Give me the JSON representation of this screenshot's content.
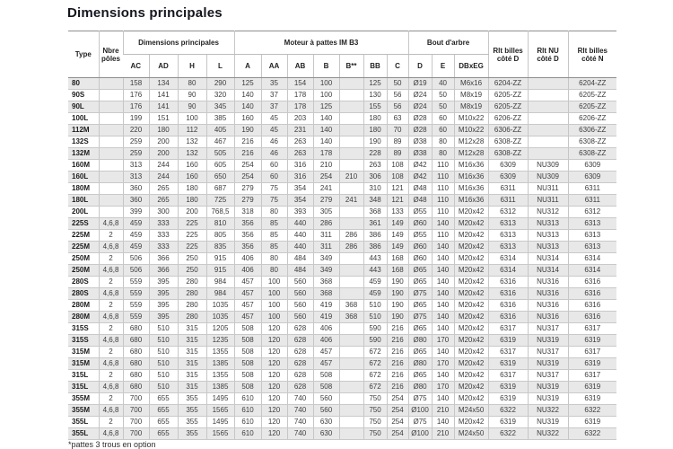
{
  "page": {
    "title": "Dimensions principales",
    "footnote": "*pattes 3 trous en option"
  },
  "colors": {
    "row_shaded": "#e8e8e8",
    "text": "#3c3c3c",
    "heading_text": "#15151f",
    "border": "#c6c6c6",
    "header_rule": "#8d8d8d"
  },
  "table": {
    "header": {
      "col_type": "Type",
      "col_poles": "Nbre pôles",
      "group_dimensions": "Dimensions principales",
      "group_moteur": "Moteur à pattes IM B3",
      "group_arbre": "Bout d'arbre",
      "sub_columns": [
        "AC",
        "AD",
        "H",
        "L",
        "A",
        "AA",
        "AB",
        "B",
        "B**",
        "BB",
        "C",
        "D",
        "E",
        "DBxEG"
      ],
      "col_rlt_billes_d": "Rlt billes côté D",
      "col_rlt_nu_d": "Rlt NU côté D",
      "col_rlt_billes_n": "Rlt billes côté N"
    },
    "rows": [
      [
        "80",
        "",
        "158",
        "134",
        "80",
        "290",
        "125",
        "35",
        "154",
        "100",
        "",
        "125",
        "50",
        "Ø19",
        "40",
        "M6x16",
        "6204-ZZ",
        "",
        "6204-ZZ"
      ],
      [
        "90S",
        "",
        "176",
        "141",
        "90",
        "320",
        "140",
        "37",
        "178",
        "100",
        "",
        "130",
        "56",
        "Ø24",
        "50",
        "M8x19",
        "6205-ZZ",
        "",
        "6205-ZZ"
      ],
      [
        "90L",
        "",
        "176",
        "141",
        "90",
        "345",
        "140",
        "37",
        "178",
        "125",
        "",
        "155",
        "56",
        "Ø24",
        "50",
        "M8x19",
        "6205-ZZ",
        "",
        "6205-ZZ"
      ],
      [
        "100L",
        "",
        "199",
        "151",
        "100",
        "385",
        "160",
        "45",
        "203",
        "140",
        "",
        "180",
        "63",
        "Ø28",
        "60",
        "M10x22",
        "6206-ZZ",
        "",
        "6206-ZZ"
      ],
      [
        "112M",
        "",
        "220",
        "180",
        "112",
        "405",
        "190",
        "45",
        "231",
        "140",
        "",
        "180",
        "70",
        "Ø28",
        "60",
        "M10x22",
        "6306-ZZ",
        "",
        "6306-ZZ"
      ],
      [
        "132S",
        "",
        "259",
        "200",
        "132",
        "467",
        "216",
        "46",
        "263",
        "140",
        "",
        "190",
        "89",
        "Ø38",
        "80",
        "M12x28",
        "6308-ZZ",
        "",
        "6308-ZZ"
      ],
      [
        "132M",
        "",
        "259",
        "200",
        "132",
        "505",
        "216",
        "46",
        "263",
        "178",
        "",
        "228",
        "89",
        "Ø38",
        "80",
        "M12x28",
        "6308-ZZ",
        "",
        "6308-ZZ"
      ],
      [
        "160M",
        "",
        "313",
        "244",
        "160",
        "605",
        "254",
        "60",
        "316",
        "210",
        "",
        "263",
        "108",
        "Ø42",
        "110",
        "M16x36",
        "6309",
        "NU309",
        "6309"
      ],
      [
        "160L",
        "",
        "313",
        "244",
        "160",
        "650",
        "254",
        "60",
        "316",
        "254",
        "210",
        "306",
        "108",
        "Ø42",
        "110",
        "M16x36",
        "6309",
        "NU309",
        "6309"
      ],
      [
        "180M",
        "",
        "360",
        "265",
        "180",
        "687",
        "279",
        "75",
        "354",
        "241",
        "",
        "310",
        "121",
        "Ø48",
        "110",
        "M16x36",
        "6311",
        "NU311",
        "6311"
      ],
      [
        "180L",
        "",
        "360",
        "265",
        "180",
        "725",
        "279",
        "75",
        "354",
        "279",
        "241",
        "348",
        "121",
        "Ø48",
        "110",
        "M16x36",
        "6311",
        "NU311",
        "6311"
      ],
      [
        "200L",
        "",
        "399",
        "300",
        "200",
        "768,5",
        "318",
        "80",
        "393",
        "305",
        "",
        "368",
        "133",
        "Ø55",
        "110",
        "M20x42",
        "6312",
        "NU312",
        "6312"
      ],
      [
        "225S",
        "4,6,8",
        "459",
        "333",
        "225",
        "810",
        "356",
        "85",
        "440",
        "286",
        "",
        "361",
        "149",
        "Ø60",
        "140",
        "M20x42",
        "6313",
        "NU313",
        "6313"
      ],
      [
        "225M",
        "2",
        "459",
        "333",
        "225",
        "805",
        "356",
        "85",
        "440",
        "311",
        "286",
        "386",
        "149",
        "Ø55",
        "110",
        "M20x42",
        "6313",
        "NU313",
        "6313"
      ],
      [
        "225M",
        "4,6,8",
        "459",
        "333",
        "225",
        "835",
        "356",
        "85",
        "440",
        "311",
        "286",
        "386",
        "149",
        "Ø60",
        "140",
        "M20x42",
        "6313",
        "NU313",
        "6313"
      ],
      [
        "250M",
        "2",
        "506",
        "366",
        "250",
        "915",
        "406",
        "80",
        "484",
        "349",
        "",
        "443",
        "168",
        "Ø60",
        "140",
        "M20x42",
        "6314",
        "NU314",
        "6314"
      ],
      [
        "250M",
        "4,6,8",
        "506",
        "366",
        "250",
        "915",
        "406",
        "80",
        "484",
        "349",
        "",
        "443",
        "168",
        "Ø65",
        "140",
        "M20x42",
        "6314",
        "NU314",
        "6314"
      ],
      [
        "280S",
        "2",
        "559",
        "395",
        "280",
        "984",
        "457",
        "100",
        "560",
        "368",
        "",
        "459",
        "190",
        "Ø65",
        "140",
        "M20x42",
        "6316",
        "NU316",
        "6316"
      ],
      [
        "280S",
        "4,6,8",
        "559",
        "395",
        "280",
        "984",
        "457",
        "100",
        "560",
        "368",
        "",
        "459",
        "190",
        "Ø75",
        "140",
        "M20x42",
        "6316",
        "NU316",
        "6316"
      ],
      [
        "280M",
        "2",
        "559",
        "395",
        "280",
        "1035",
        "457",
        "100",
        "560",
        "419",
        "368",
        "510",
        "190",
        "Ø65",
        "140",
        "M20x42",
        "6316",
        "NU316",
        "6316"
      ],
      [
        "280M",
        "4,6,8",
        "559",
        "395",
        "280",
        "1035",
        "457",
        "100",
        "560",
        "419",
        "368",
        "510",
        "190",
        "Ø75",
        "140",
        "M20x42",
        "6316",
        "NU316",
        "6316"
      ],
      [
        "315S",
        "2",
        "680",
        "510",
        "315",
        "1205",
        "508",
        "120",
        "628",
        "406",
        "",
        "590",
        "216",
        "Ø65",
        "140",
        "M20x42",
        "6317",
        "NU317",
        "6317"
      ],
      [
        "315S",
        "4,6,8",
        "680",
        "510",
        "315",
        "1235",
        "508",
        "120",
        "628",
        "406",
        "",
        "590",
        "216",
        "Ø80",
        "170",
        "M20x42",
        "6319",
        "NU319",
        "6319"
      ],
      [
        "315M",
        "2",
        "680",
        "510",
        "315",
        "1355",
        "508",
        "120",
        "628",
        "457",
        "",
        "672",
        "216",
        "Ø65",
        "140",
        "M20x42",
        "6317",
        "NU317",
        "6317"
      ],
      [
        "315M",
        "4,6,8",
        "680",
        "510",
        "315",
        "1385",
        "508",
        "120",
        "628",
        "457",
        "",
        "672",
        "216",
        "Ø80",
        "170",
        "M20x42",
        "6319",
        "NU319",
        "6319"
      ],
      [
        "315L",
        "2",
        "680",
        "510",
        "315",
        "1355",
        "508",
        "120",
        "628",
        "508",
        "",
        "672",
        "216",
        "Ø65",
        "140",
        "M20x42",
        "6317",
        "NU317",
        "6317"
      ],
      [
        "315L",
        "4,6,8",
        "680",
        "510",
        "315",
        "1385",
        "508",
        "120",
        "628",
        "508",
        "",
        "672",
        "216",
        "Ø80",
        "170",
        "M20x42",
        "6319",
        "NU319",
        "6319"
      ],
      [
        "355M",
        "2",
        "700",
        "655",
        "355",
        "1495",
        "610",
        "120",
        "740",
        "560",
        "",
        "750",
        "254",
        "Ø75",
        "140",
        "M20x42",
        "6319",
        "NU319",
        "6319"
      ],
      [
        "355M",
        "4,6,8",
        "700",
        "655",
        "355",
        "1565",
        "610",
        "120",
        "740",
        "560",
        "",
        "750",
        "254",
        "Ø100",
        "210",
        "M24x50",
        "6322",
        "NU322",
        "6322"
      ],
      [
        "355L",
        "2",
        "700",
        "655",
        "355",
        "1495",
        "610",
        "120",
        "740",
        "630",
        "",
        "750",
        "254",
        "Ø75",
        "140",
        "M20x42",
        "6319",
        "NU319",
        "6319"
      ],
      [
        "355L",
        "4,6,8",
        "700",
        "655",
        "355",
        "1565",
        "610",
        "120",
        "740",
        "630",
        "",
        "750",
        "254",
        "Ø100",
        "210",
        "M24x50",
        "6322",
        "NU322",
        "6322"
      ]
    ]
  }
}
